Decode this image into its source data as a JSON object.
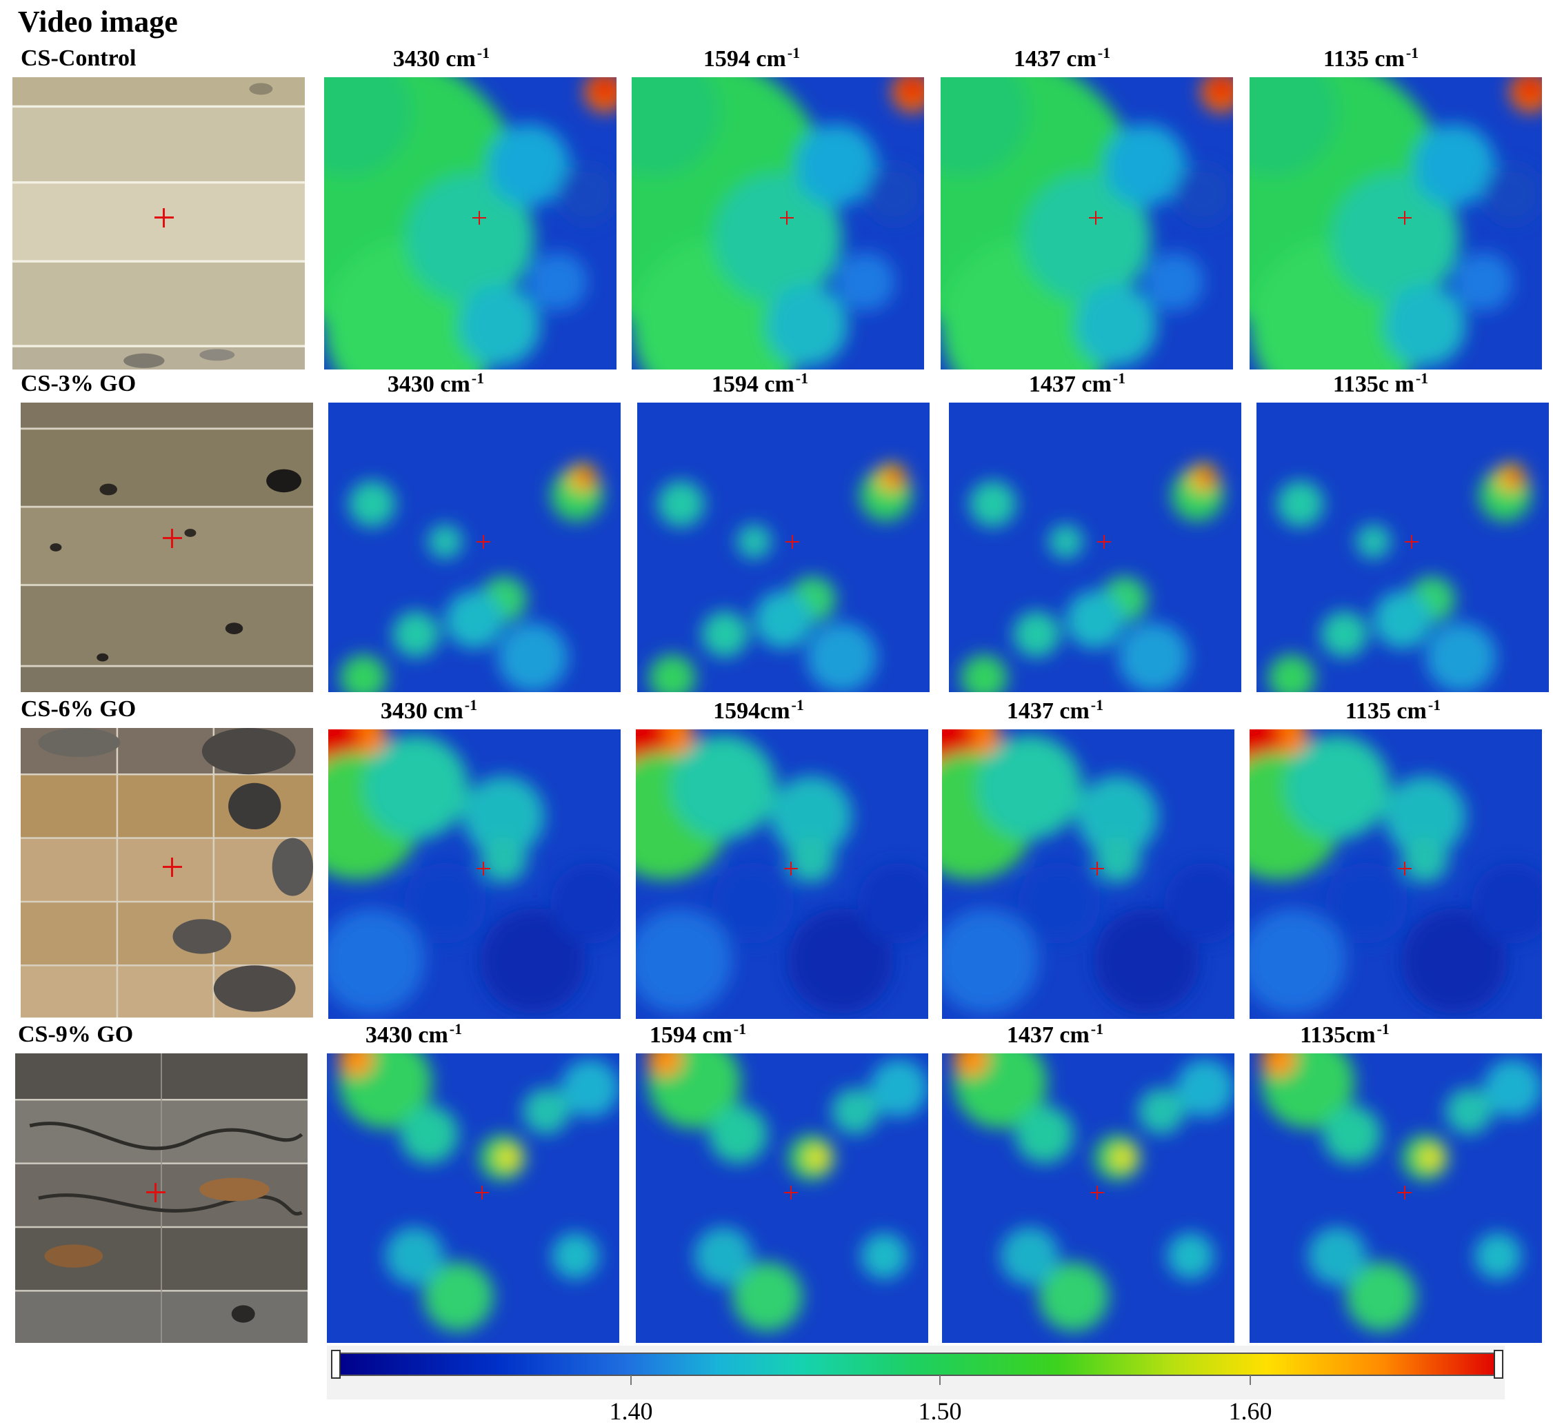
{
  "heading": "Video image",
  "rows": [
    {
      "label": "CS-Control",
      "bands": [
        {
          "base": "3430 cm",
          "sup": "-1"
        },
        {
          "base": "1594 cm",
          "sup": "-1"
        },
        {
          "base": "1437 cm",
          "sup": "-1"
        },
        {
          "base": "1135 cm",
          "sup": "-1"
        }
      ]
    },
    {
      "label": "CS-3% GO",
      "bands": [
        {
          "base": "3430 cm",
          "sup": "-1"
        },
        {
          "base": "1594 cm",
          "sup": "-1"
        },
        {
          "base": "1437 cm",
          "sup": "-1"
        },
        {
          "base": "1135c m",
          "sup": "-1"
        }
      ]
    },
    {
      "label": "CS-6% GO",
      "bands": [
        {
          "base": "3430 cm",
          "sup": "-1"
        },
        {
          "base": "1594cm",
          "sup": "-1"
        },
        {
          "base": "1437 cm",
          "sup": "-1"
        },
        {
          "base": "1135 cm",
          "sup": "-1"
        }
      ]
    },
    {
      "label": "CS-9% GO",
      "bands": [
        {
          "base": "3430 cm",
          "sup": "-1"
        },
        {
          "base": "1594 cm",
          "sup": "-1"
        },
        {
          "base": "1437 cm",
          "sup": "-1"
        },
        {
          "base": "1135cm",
          "sup": "-1"
        }
      ]
    }
  ],
  "colorbar": {
    "ticks": [
      "1.40",
      "1.50",
      "1.60"
    ],
    "colors": [
      "#00008a",
      "#1f6fe0",
      "#16d2b0",
      "#1ed060",
      "#b8e010",
      "#ffe000",
      "#ff8a00",
      "#e00000"
    ]
  },
  "colors": {
    "crosshair": "#e01010",
    "map_background": "#1240c8",
    "video_control": "#c9c0a6",
    "video_3": "#8e8267",
    "video_6": "#b99a72",
    "video_9": "#6a6864"
  }
}
